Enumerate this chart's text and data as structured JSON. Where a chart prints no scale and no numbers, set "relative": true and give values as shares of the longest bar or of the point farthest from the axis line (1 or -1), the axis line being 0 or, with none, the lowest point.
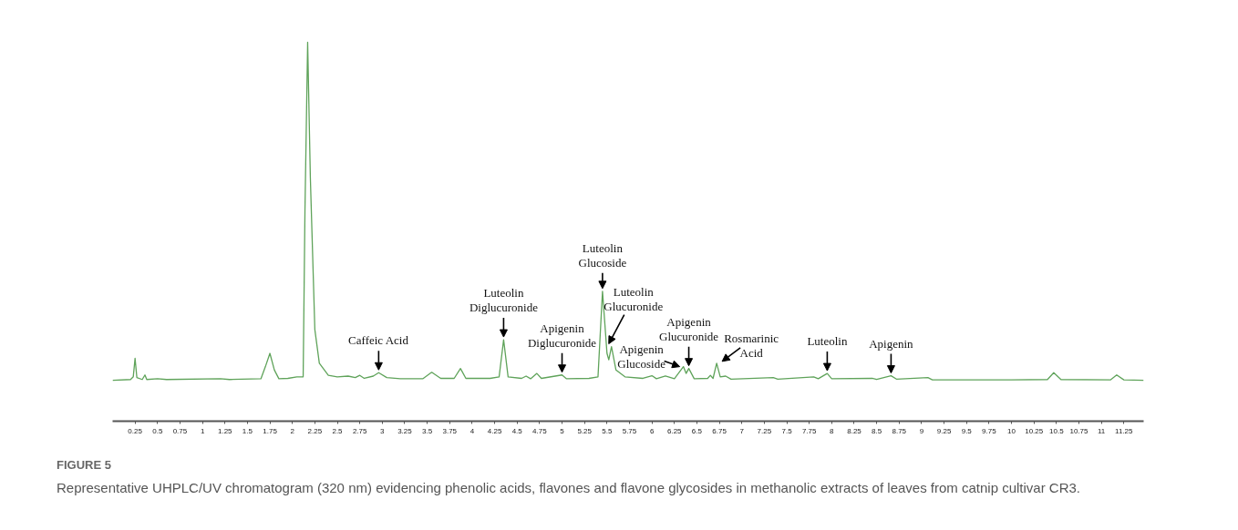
{
  "chart_data": {
    "type": "line",
    "relative": true,
    "title": "FIGURE 5",
    "color": "#5fa35a",
    "grid": false,
    "tick_labels": "x",
    "xlim": [
      0,
      11.47
    ],
    "xticks": [
      0.25,
      0.5,
      0.75,
      1,
      1.25,
      1.5,
      1.75,
      2,
      2.25,
      2.5,
      2.75,
      3,
      3.25,
      3.5,
      3.75,
      4,
      4.25,
      4.5,
      4.75,
      5,
      5.25,
      5.5,
      5.75,
      6,
      6.25,
      6.5,
      6.75,
      7,
      7.25,
      7.5,
      7.75,
      8,
      8.25,
      8.5,
      8.75,
      9,
      9.25,
      9.5,
      9.75,
      10,
      10.25,
      10.5,
      10.75,
      11,
      11.25
    ],
    "x": [
      0,
      0.2,
      0.23,
      0.25,
      0.27,
      0.33,
      0.36,
      0.38,
      0.5,
      0.6,
      1.2,
      1.3,
      1.65,
      1.7,
      1.75,
      1.8,
      1.85,
      1.95,
      2.05,
      2.12,
      2.14,
      2.17,
      2.2,
      2.25,
      2.3,
      2.4,
      2.5,
      2.62,
      2.7,
      2.75,
      2.8,
      2.9,
      2.96,
      3.05,
      3.2,
      3.45,
      3.55,
      3.65,
      3.8,
      3.87,
      3.93,
      4.2,
      4.3,
      4.35,
      4.4,
      4.55,
      4.6,
      4.65,
      4.72,
      4.77,
      5.0,
      5.05,
      5.3,
      5.4,
      5.45,
      5.5,
      5.52,
      5.55,
      5.6,
      5.7,
      5.9,
      6.0,
      6.05,
      6.15,
      6.25,
      6.35,
      6.38,
      6.41,
      6.47,
      6.62,
      6.65,
      6.68,
      6.72,
      6.76,
      6.82,
      6.88,
      7.35,
      7.4,
      7.8,
      7.85,
      7.95,
      8.0,
      8.45,
      8.5,
      8.66,
      8.72,
      9.07,
      9.12,
      10.0,
      10.4,
      10.47,
      10.55,
      11.1,
      11.17,
      11.25,
      11.47
    ],
    "values": [
      0.108,
      0.11,
      0.117,
      0.166,
      0.115,
      0.11,
      0.122,
      0.11,
      0.112,
      0.11,
      0.112,
      0.11,
      0.112,
      0.144,
      0.179,
      0.135,
      0.112,
      0.113,
      0.117,
      0.117,
      0.554,
      1.0,
      0.643,
      0.242,
      0.153,
      0.121,
      0.117,
      0.119,
      0.115,
      0.121,
      0.113,
      0.119,
      0.128,
      0.115,
      0.112,
      0.112,
      0.129,
      0.113,
      0.113,
      0.139,
      0.113,
      0.113,
      0.117,
      0.215,
      0.117,
      0.113,
      0.119,
      0.112,
      0.126,
      0.113,
      0.122,
      0.112,
      0.113,
      0.117,
      0.343,
      0.179,
      0.162,
      0.197,
      0.135,
      0.117,
      0.113,
      0.12,
      0.112,
      0.119,
      0.112,
      0.144,
      0.126,
      0.139,
      0.112,
      0.113,
      0.121,
      0.113,
      0.153,
      0.117,
      0.119,
      0.111,
      0.115,
      0.111,
      0.117,
      0.112,
      0.126,
      0.112,
      0.113,
      0.11,
      0.12,
      0.111,
      0.115,
      0.109,
      0.109,
      0.11,
      0.128,
      0.11,
      0.109,
      0.122,
      0.109,
      0.108
    ],
    "annotations": [
      {
        "text": "Caffeic Acid",
        "x": 2.96,
        "y": 0.128
      },
      {
        "text": "Luteolin\nDiglucuronide",
        "x": 4.35,
        "y": 0.215
      },
      {
        "text": "Apigenin\nDiglucuronide",
        "x": 5.0,
        "y": 0.122
      },
      {
        "text": "Luteolin\nGlucoside",
        "x": 5.45,
        "y": 0.343
      },
      {
        "text": "Luteolin\nGlucuronide",
        "x": 5.55,
        "y": 0.197
      },
      {
        "text": "Apigenin\nGlucoside",
        "x": 6.35,
        "y": 0.144
      },
      {
        "text": "Apigenin\nGlucuronide",
        "x": 6.41,
        "y": 0.139
      },
      {
        "text": "Rosmarinic\nAcid",
        "x": 6.72,
        "y": 0.153
      },
      {
        "text": "Luteolin",
        "x": 7.95,
        "y": 0.126
      },
      {
        "text": "Apigenin",
        "x": 8.66,
        "y": 0.12
      },
      "Representative UHPLC/UV chromatogram (320 nm) evidencing phenolic acids, flavones and flavone glycosides in methanolic extracts of leaves from catnip cultivar CR3."
    ]
  }
}
